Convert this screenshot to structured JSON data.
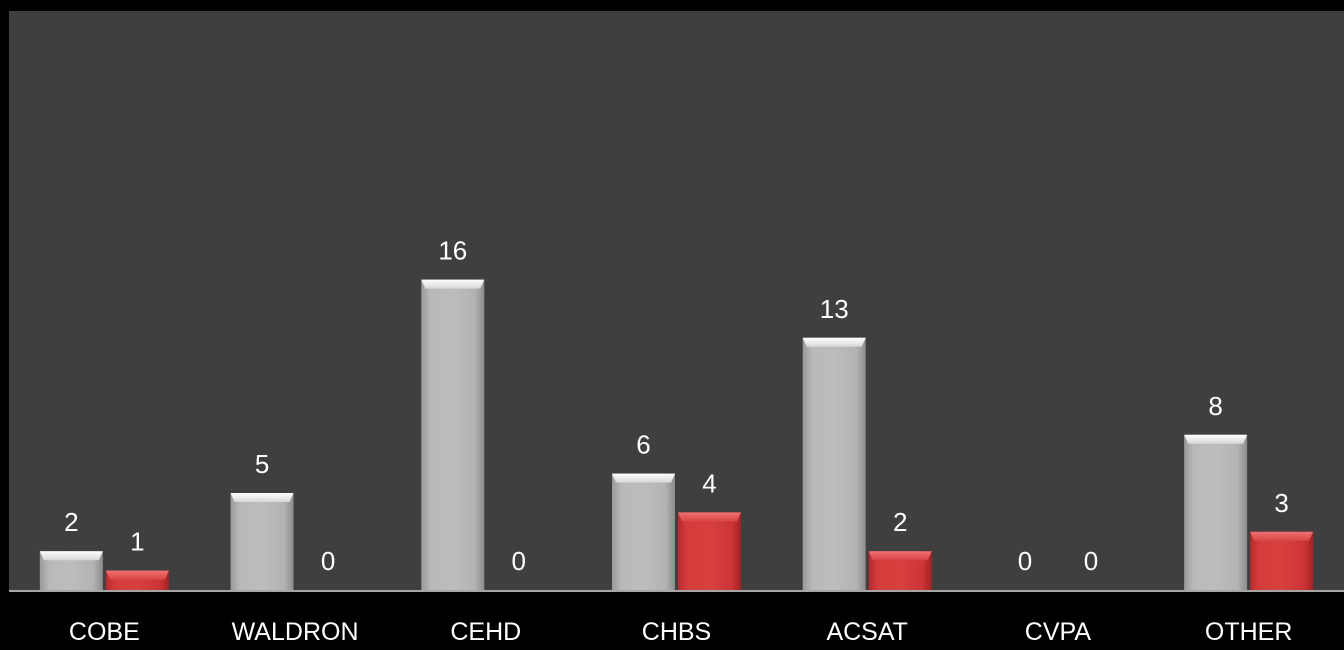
{
  "chart_data": {
    "type": "bar",
    "categories": [
      "COBE",
      "WALDRON",
      "CEHD",
      "CHBS",
      "ACSAT",
      "CVPA",
      "OTHER"
    ],
    "series": [
      {
        "values": [
          2,
          5,
          16,
          6,
          13,
          0,
          8
        ],
        "color": "#b2b2b2"
      },
      {
        "values": [
          1,
          0,
          0,
          4,
          2,
          0,
          3
        ],
        "color": "#d23a3a"
      }
    ],
    "ylim": [
      0,
      30
    ],
    "grid": false,
    "legend": "none",
    "background": "#3f3f3f",
    "axis_color": "#a6a6a6",
    "label_color": "#ffffff"
  }
}
